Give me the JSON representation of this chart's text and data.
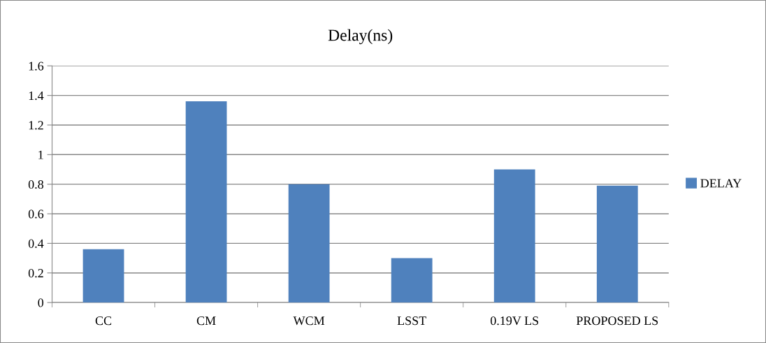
{
  "chart_data": {
    "type": "bar",
    "title": "Delay(ns)",
    "categories": [
      "CC",
      "CM",
      "WCM",
      "LSST",
      "0.19V LS",
      "PROPOSED LS"
    ],
    "series": [
      {
        "name": "DELAY",
        "color": "#4f81bd",
        "values": [
          0.36,
          1.36,
          0.8,
          0.3,
          0.9,
          0.79
        ]
      }
    ],
    "ylim": [
      0,
      1.6
    ],
    "yticks": [
      0,
      0.2,
      0.4,
      0.6,
      0.8,
      1,
      1.2,
      1.4,
      1.6
    ],
    "grid": "y",
    "legend": "right"
  }
}
